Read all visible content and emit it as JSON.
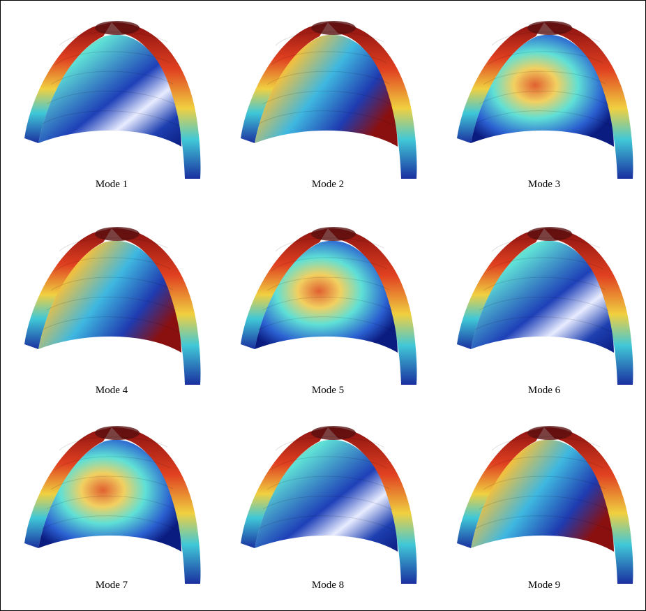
{
  "panels": [
    {
      "label": "Mode 1"
    },
    {
      "label": "Mode 2"
    },
    {
      "label": "Mode 3"
    },
    {
      "label": "Mode 4"
    },
    {
      "label": "Mode 5"
    },
    {
      "label": "Mode 6"
    },
    {
      "label": "Mode 7"
    },
    {
      "label": "Mode 8"
    },
    {
      "label": "Mode 9"
    }
  ]
}
